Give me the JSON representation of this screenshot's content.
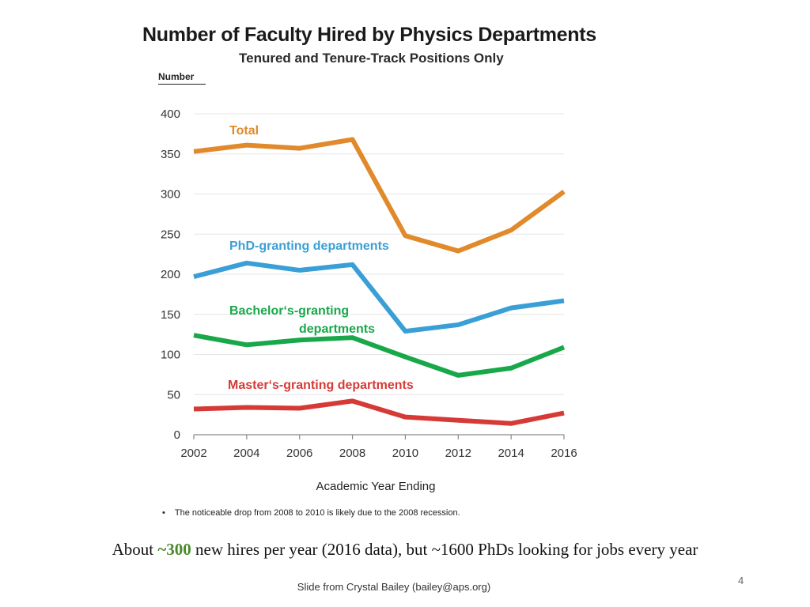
{
  "chart_data": {
    "type": "line",
    "title": "Number of Faculty Hired by Physics Departments",
    "subtitle": "Tenured and Tenure-Track Positions Only",
    "ylabel": "Number",
    "xlabel": "Academic Year Ending",
    "x": [
      2002,
      2004,
      2006,
      2008,
      2010,
      2012,
      2014,
      2016
    ],
    "ylim": [
      0,
      400
    ],
    "yticks": [
      0,
      50,
      100,
      150,
      200,
      250,
      300,
      350,
      400
    ],
    "grid": true,
    "series": [
      {
        "name": "Total",
        "color": "#e08a2c",
        "values": [
          353,
          361,
          357,
          368,
          248,
          229,
          255,
          303
        ]
      },
      {
        "name": "PhD-granting departments",
        "color": "#3a9fd6",
        "values": [
          197,
          214,
          205,
          212,
          129,
          137,
          158,
          167
        ]
      },
      {
        "name": "Bachelor‘s-granting departments",
        "label_lines": [
          "Bachelor‘s-granting",
          "departments"
        ],
        "color": "#18a84a",
        "values": [
          124,
          112,
          118,
          121,
          97,
          74,
          83,
          109
        ]
      },
      {
        "name": "Master‘s-granting departments",
        "color": "#d63a36",
        "values": [
          32,
          34,
          33,
          42,
          22,
          18,
          14,
          27
        ]
      }
    ]
  },
  "note": "The noticeable drop from 2008 to 2010 is likely due to the 2008 recession.",
  "caption": {
    "prefix": "About ",
    "highlight": "~300",
    "suffix": " new hires per year (2016 data), but ~1600 PhDs looking for jobs every year"
  },
  "credit": "Slide from Crystal Bailey (bailey@aps.org)",
  "page_number": "4"
}
